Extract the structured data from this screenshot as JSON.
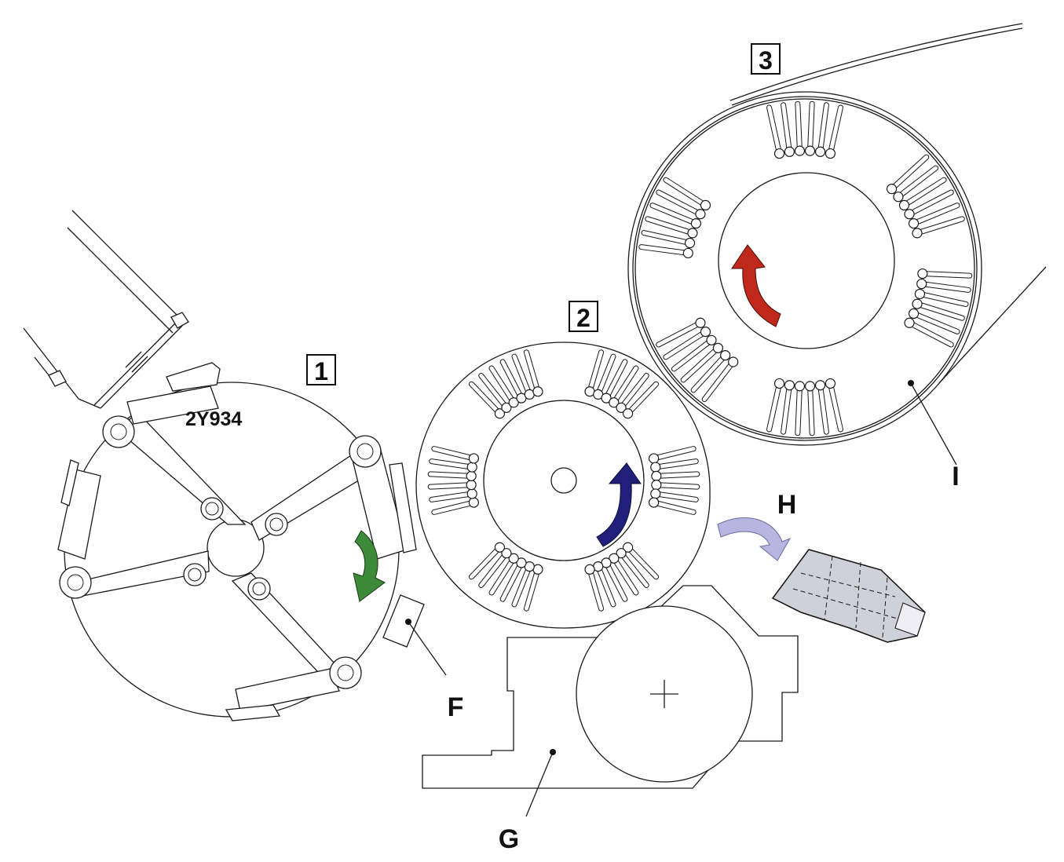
{
  "drum_labels": {
    "d1": "1",
    "d2": "2",
    "d3": "3"
  },
  "part_code": "2Y934",
  "callouts": {
    "f": "F",
    "g": "G",
    "h": "H",
    "i": "I"
  },
  "arrow_colors": {
    "drum1": "#3d8a3a",
    "drum2": "#20207a",
    "drum3": "#c0281c",
    "output": "#b8b6e0"
  }
}
